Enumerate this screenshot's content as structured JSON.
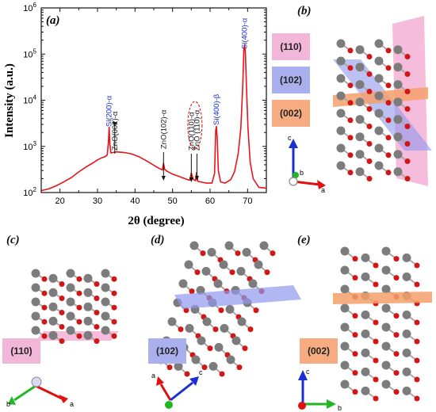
{
  "panel_letters": {
    "a": "(a)",
    "b": "(b)",
    "c": "(c)",
    "d": "(d)",
    "e": "(e)"
  },
  "plane_labels": {
    "p110": "(110)",
    "p102": "(102)",
    "p002": "(002)"
  },
  "plane_colors": {
    "p110": "#f2b6d8",
    "p102": "#aab0ee",
    "p002": "#f7ab80"
  },
  "axis_letters": {
    "a": "a",
    "b": "b",
    "c": "c"
  },
  "chart_data": {
    "type": "line",
    "xlabel": "2θ (degree)",
    "ylabel": "Intensity (a.u.)",
    "xlim": [
      15,
      75
    ],
    "ylim": [
      100,
      1000000
    ],
    "yscale": "log",
    "x_ticks": [
      20,
      30,
      40,
      50,
      60,
      70
    ],
    "y_ticks": [
      {
        "value": 100,
        "base": "10",
        "exp": "2"
      },
      {
        "value": 1000,
        "base": "10",
        "exp": "3"
      },
      {
        "value": 10000,
        "base": "10",
        "exp": "4"
      },
      {
        "value": 100000,
        "base": "10",
        "exp": "5"
      },
      {
        "value": 1000000,
        "base": "10",
        "exp": "6"
      }
    ],
    "grid": false,
    "line_color": "#e8141a",
    "x": [
      15,
      17,
      19,
      21,
      23,
      25,
      27,
      29,
      30,
      31,
      32,
      32.6,
      32.9,
      33.1,
      33.3,
      33.6,
      34.2,
      35,
      37,
      39,
      41,
      43,
      45,
      46.5,
      47.3,
      47.6,
      47.9,
      48.5,
      50,
      52,
      54,
      54.6,
      55,
      55.5,
      56.1,
      56.4,
      56.7,
      57.5,
      59,
      60.5,
      61.2,
      61.5,
      61.7,
      61.9,
      62.2,
      62.8,
      64,
      65.5,
      66.5,
      67.5,
      68.2,
      68.7,
      69.0,
      69.2,
      69.4,
      69.7,
      70.1,
      70.7,
      71.5,
      73,
      75
    ],
    "y": [
      110,
      120,
      140,
      170,
      210,
      280,
      360,
      450,
      510,
      560,
      600,
      650,
      1200,
      2600,
      1100,
      720,
      740,
      760,
      740,
      690,
      600,
      490,
      390,
      330,
      310,
      430,
      320,
      290,
      250,
      220,
      190,
      185,
      265,
      195,
      180,
      270,
      175,
      170,
      160,
      160,
      260,
      2200,
      2700,
      1500,
      300,
      170,
      160,
      190,
      280,
      700,
      2500,
      20000,
      120000,
      160000,
      110000,
      20000,
      2500,
      450,
      200,
      130,
      125
    ],
    "annotations": [
      {
        "text": "Si(200)-α",
        "x": 33.1,
        "color": "#1a2fd0"
      },
      {
        "text": "ZnO(002)-α",
        "x": 34.6,
        "color": "#111111"
      },
      {
        "text": "ZnO(102)-α",
        "x": 47.6,
        "color": "#111111"
      },
      {
        "text": "ZnO(110)-α",
        "x": 55.0,
        "color": "#111111"
      },
      {
        "text": "ZnO (110)-α",
        "x": 56.5,
        "color": "#111111"
      },
      {
        "text": "Si(400)-β",
        "x": 61.7,
        "color": "#1a2fd0"
      },
      {
        "text": "Si(400)-α",
        "x": 69.2,
        "color": "#1a2fd0"
      }
    ]
  }
}
